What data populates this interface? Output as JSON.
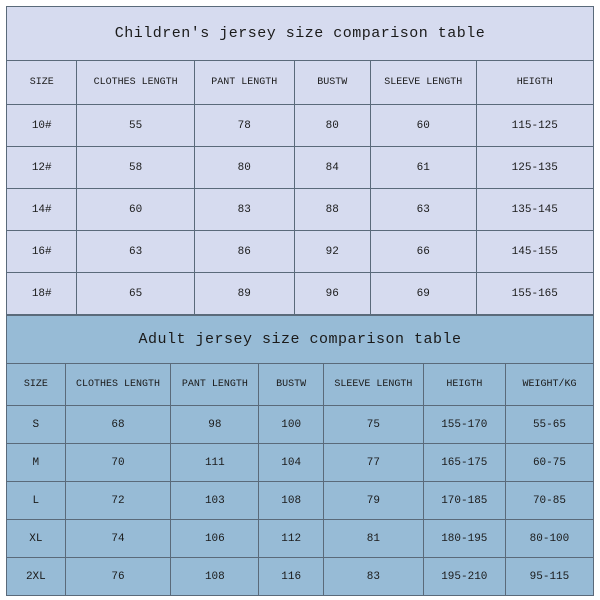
{
  "colors": {
    "border": "#5a6a7a",
    "kids_bg": "#d6dbef",
    "adult_bg": "#97bbd6",
    "text": "#1a1a1a"
  },
  "children_table": {
    "title": "Children's jersey size comparison table",
    "columns": [
      "SIZE",
      "CLOTHES LENGTH",
      "PANT LENGTH",
      "BUSTW",
      "SLEEVE LENGTH",
      "HEIGTH"
    ],
    "col_widths_pct": [
      12,
      20,
      17,
      13,
      18,
      20
    ],
    "rows": [
      [
        "10#",
        "55",
        "78",
        "80",
        "60",
        "115-125"
      ],
      [
        "12#",
        "58",
        "80",
        "84",
        "61",
        "125-135"
      ],
      [
        "14#",
        "60",
        "83",
        "88",
        "63",
        "135-145"
      ],
      [
        "16#",
        "63",
        "86",
        "92",
        "66",
        "145-155"
      ],
      [
        "18#",
        "65",
        "89",
        "96",
        "69",
        "155-165"
      ]
    ]
  },
  "adult_table": {
    "title": "Adult jersey size comparison table",
    "columns": [
      "SIZE",
      "CLOTHES LENGTH",
      "PANT LENGTH",
      "BUSTW",
      "SLEEVE LENGTH",
      "HEIGTH",
      "WEIGHT/KG"
    ],
    "col_widths_pct": [
      10,
      18,
      15,
      11,
      17,
      14,
      15
    ],
    "rows": [
      [
        "S",
        "68",
        "98",
        "100",
        "75",
        "155-170",
        "55-65"
      ],
      [
        "M",
        "70",
        "111",
        "104",
        "77",
        "165-175",
        "60-75"
      ],
      [
        "L",
        "72",
        "103",
        "108",
        "79",
        "170-185",
        "70-85"
      ],
      [
        "XL",
        "74",
        "106",
        "112",
        "81",
        "180-195",
        "80-100"
      ],
      [
        "2XL",
        "76",
        "108",
        "116",
        "83",
        "195-210",
        "95-115"
      ]
    ]
  }
}
